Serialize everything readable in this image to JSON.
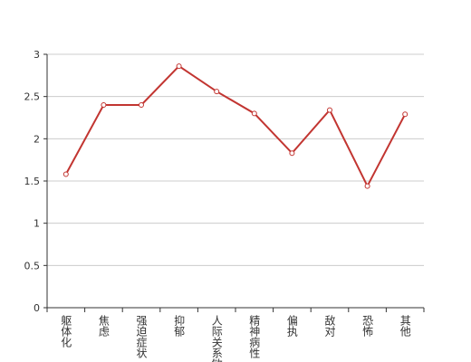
{
  "chart_data": {
    "type": "line",
    "categories": [
      "躯体化",
      "焦虑",
      "强迫症状",
      "抑郁",
      "人际关系敏感",
      "精神病性",
      "偏执",
      "敌对",
      "恐怖",
      "其他"
    ],
    "values": [
      1.58,
      2.4,
      2.4,
      2.86,
      2.56,
      2.3,
      1.83,
      2.34,
      1.44,
      2.29
    ],
    "color": "#c23531",
    "ylim": [
      0,
      3
    ],
    "yticks": [
      0,
      0.5,
      1,
      1.5,
      2,
      2.5,
      3
    ],
    "grid": true
  }
}
